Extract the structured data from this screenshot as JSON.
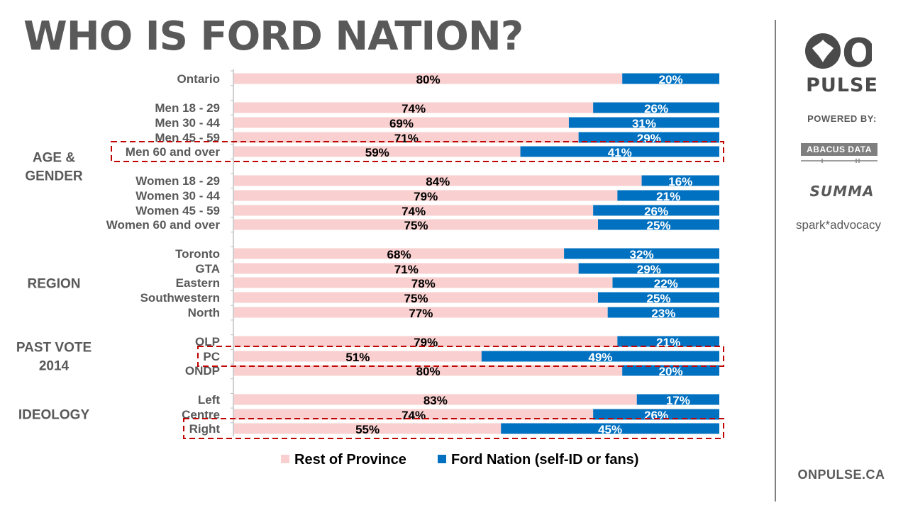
{
  "page": {
    "title": "WHO IS FORD NATION?",
    "brand": {
      "logo_text": "ON",
      "name": "PULSE",
      "powered_by": "POWERED BY:",
      "partners": [
        "ABACUS DATA",
        "SUMMA",
        "spark*advocacy"
      ],
      "website": "ONPULSE.CA"
    }
  },
  "colors": {
    "rest": "#f9cfcf",
    "ford": "#0070c0",
    "highlight": "#c00000",
    "label": "#595959",
    "axis": "#bfbfbf"
  },
  "chart_data": {
    "type": "bar",
    "orientation": "horizontal",
    "stacked": "100%",
    "title": "WHO IS FORD NATION?",
    "series": [
      {
        "name": "Rest of Province",
        "color": "#f9cfcf",
        "values": [
          80,
          74,
          69,
          71,
          59,
          84,
          79,
          74,
          75,
          68,
          71,
          78,
          75,
          77,
          79,
          51,
          80,
          83,
          74,
          55
        ]
      },
      {
        "name": "Ford Nation (self-ID or fans)",
        "color": "#0070c0",
        "values": [
          20,
          26,
          31,
          29,
          41,
          16,
          21,
          26,
          25,
          32,
          29,
          22,
          25,
          23,
          21,
          49,
          20,
          17,
          26,
          45
        ]
      }
    ],
    "categories": [
      "Ontario",
      "Men 18 - 29",
      "Men 30 - 44",
      "Men 45 - 59",
      "Men 60 and over",
      "Women 18 - 29",
      "Women 30 - 44",
      "Women 45 - 59",
      "Women 60 and over",
      "Toronto",
      "GTA",
      "Eastern",
      "Southwestern",
      "North",
      "OLP",
      "PC",
      "ONDP",
      "Left",
      "Centre",
      "Right"
    ],
    "data_label_suffix": "%",
    "groups": [
      {
        "label": [
          "AGE &",
          "GENDER"
        ],
        "rows": [
          1,
          8
        ]
      },
      {
        "label": [
          "REGION"
        ],
        "rows": [
          9,
          13
        ]
      },
      {
        "label": [
          "PAST VOTE",
          "2014"
        ],
        "rows": [
          14,
          16
        ]
      },
      {
        "label": [
          "IDEOLOGY"
        ],
        "rows": [
          17,
          19
        ]
      }
    ],
    "highlighted": [
      "Men 60 and over",
      "PC",
      "Right"
    ],
    "legend_position": "bottom",
    "grid": false
  }
}
